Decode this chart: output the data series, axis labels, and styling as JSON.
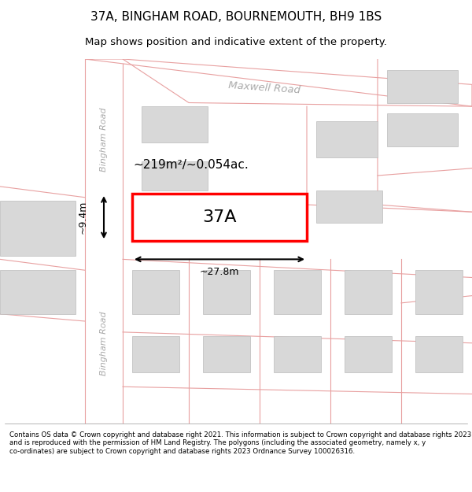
{
  "title": "37A, BINGHAM ROAD, BOURNEMOUTH, BH9 1BS",
  "subtitle": "Map shows position and indicative extent of the property.",
  "footer": "Contains OS data © Crown copyright and database right 2021. This information is subject to Crown copyright and database rights 2023 and is reproduced with the permission of HM Land Registry. The polygons (including the associated geometry, namely x, y co-ordinates) are subject to Crown copyright and database rights 2023 Ordnance Survey 100026316.",
  "map_bg": "#f5f5f5",
  "road_fill": "#ffffff",
  "road_stroke": "#e8a0a0",
  "building_fill": "#d8d8d8",
  "building_stroke": "#cccccc",
  "property_stroke": "#ff0000",
  "property_fill": "#ffffff",
  "dim_color": "#222222",
  "label_37A": "37A",
  "area_label": "~219m²/~0.054ac.",
  "dim_width": "~27.8m",
  "dim_height": "~9.4m",
  "road_label_maxwell": "Maxwell Road",
  "road_label_bingham1": "Bingham Road",
  "road_label_bingham2": "Bingham Road",
  "title_fontsize": 11,
  "subtitle_fontsize": 9.5
}
